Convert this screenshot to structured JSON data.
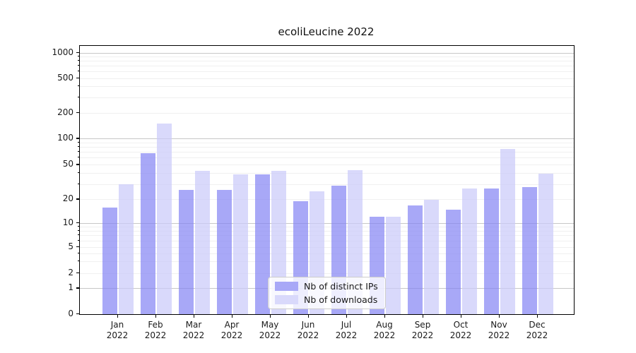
{
  "figure": {
    "background": "#ffffff"
  },
  "chart_data": {
    "type": "bar",
    "title": "ecoliLeucine 2022",
    "categories": [
      "Jan",
      "Feb",
      "Mar",
      "Apr",
      "May",
      "Jun",
      "Jul",
      "Aug",
      "Sep",
      "Oct",
      "Nov",
      "Dec"
    ],
    "category_year": "2022",
    "series": [
      {
        "name": "Nb of distinct IPs",
        "color": "#8383f4",
        "bar_fill": "rgba(131,131,244,0.70)",
        "legend_swatch": "#a8a8f7",
        "values": [
          16,
          68,
          26,
          26,
          39,
          19,
          29,
          12,
          17,
          15,
          27,
          28
        ]
      },
      {
        "name": "Nb of downloads",
        "color": "#cacafa",
        "bar_fill": "rgba(202,202,250,0.72)",
        "legend_swatch": "#d9d9fb",
        "values": [
          30,
          150,
          43,
          39,
          43,
          25,
          44,
          12,
          20,
          27,
          77,
          40
        ]
      }
    ],
    "xlabel": "",
    "ylabel": "",
    "yscale": "symlog-like",
    "yticks": [
      0,
      1,
      2,
      5,
      10,
      20,
      50,
      100,
      200,
      500,
      1000
    ],
    "grid": "both",
    "legend_position": "lower-center"
  }
}
